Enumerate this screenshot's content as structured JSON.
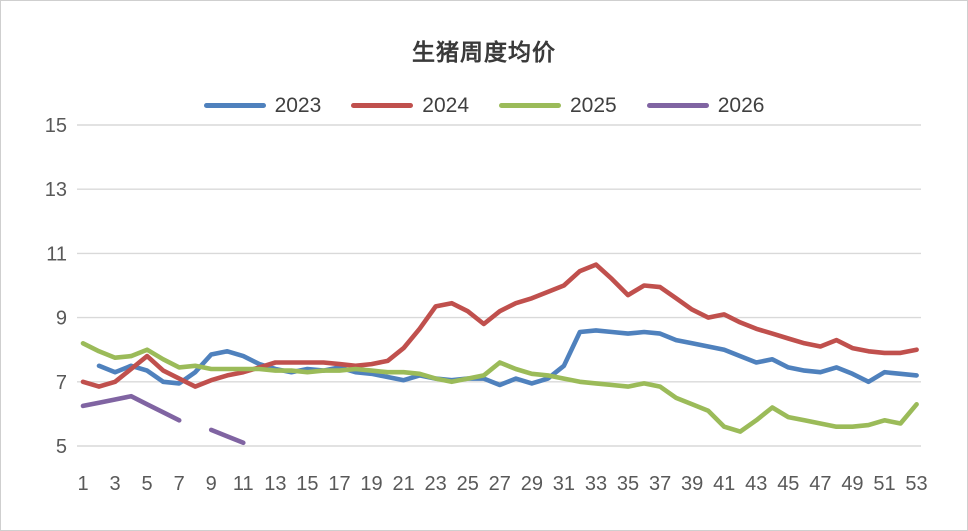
{
  "chart_data": {
    "type": "line",
    "title": "生猪周度均价",
    "xlabel": "",
    "ylabel": "",
    "grid": true,
    "legend_position": "top-center",
    "background_color": "#ffffff",
    "grid_color": "#d9d9d9",
    "axis_label_color": "#595959",
    "title_color": "#3a3a3a",
    "ylim": [
      5,
      15
    ],
    "y_ticks": [
      5,
      7,
      9,
      11,
      13,
      15
    ],
    "x_ticks": [
      1,
      3,
      5,
      7,
      9,
      11,
      13,
      15,
      17,
      19,
      21,
      23,
      25,
      27,
      29,
      31,
      33,
      35,
      37,
      39,
      41,
      43,
      45,
      47,
      49,
      51,
      53
    ],
    "x_unit": "week",
    "x_range": [
      1,
      53
    ],
    "series": [
      {
        "name": "2023",
        "color": "#4f81bd",
        "values": [
          null,
          7.5,
          7.3,
          7.5,
          7.35,
          7.0,
          6.95,
          7.3,
          7.85,
          7.95,
          7.8,
          7.55,
          7.4,
          7.3,
          7.4,
          7.35,
          7.45,
          7.3,
          7.25,
          7.15,
          7.05,
          7.2,
          7.1,
          7.05,
          7.1,
          7.1,
          6.9,
          7.1,
          6.95,
          7.1,
          7.5,
          8.55,
          8.6,
          8.55,
          8.5,
          8.55,
          8.5,
          8.3,
          8.2,
          8.1,
          8.0,
          7.8,
          7.6,
          7.7,
          7.45,
          7.35,
          7.3,
          7.45,
          7.25,
          7.0,
          7.3,
          7.25,
          7.2
        ]
      },
      {
        "name": "2024",
        "color": "#c0504d",
        "values": [
          7.0,
          6.85,
          7.0,
          7.4,
          7.8,
          7.35,
          7.1,
          6.85,
          7.05,
          7.2,
          7.3,
          7.45,
          7.6,
          7.6,
          7.6,
          7.6,
          7.55,
          7.5,
          7.55,
          7.65,
          8.05,
          8.65,
          9.35,
          9.45,
          9.2,
          8.8,
          9.2,
          9.45,
          9.6,
          9.8,
          10.0,
          10.45,
          10.65,
          10.2,
          9.7,
          10.0,
          9.95,
          9.6,
          9.25,
          9.0,
          9.1,
          8.85,
          8.65,
          8.5,
          8.35,
          8.2,
          8.1,
          8.3,
          8.05,
          7.95,
          7.9,
          7.9,
          8.0
        ]
      },
      {
        "name": "2025",
        "color": "#9bbb59",
        "values": [
          8.2,
          7.95,
          7.75,
          7.8,
          8.0,
          7.7,
          7.45,
          7.5,
          7.4,
          7.4,
          7.4,
          7.4,
          7.35,
          7.35,
          7.3,
          7.35,
          7.35,
          7.4,
          7.35,
          7.3,
          7.3,
          7.25,
          7.1,
          7.0,
          7.1,
          7.2,
          7.6,
          7.4,
          7.25,
          7.2,
          7.1,
          7.0,
          6.95,
          6.9,
          6.85,
          6.95,
          6.85,
          6.5,
          6.3,
          6.1,
          5.6,
          5.45,
          5.8,
          6.2,
          5.9,
          5.8,
          5.7,
          5.6,
          5.6,
          5.65,
          5.8,
          5.7,
          6.3
        ]
      },
      {
        "name": "2026",
        "color": "#8064a2",
        "values": [
          6.25,
          6.35,
          6.45,
          6.55,
          6.3,
          6.05,
          5.8,
          null,
          5.5,
          5.3,
          5.1,
          null,
          null,
          null,
          null,
          null,
          null,
          null,
          null,
          null,
          null,
          null,
          null,
          null,
          null,
          null,
          null,
          null,
          null,
          null,
          null,
          null,
          null,
          null,
          null,
          null,
          null,
          null,
          null,
          null,
          null,
          null,
          null,
          null,
          null,
          null,
          null,
          null,
          null,
          null,
          null,
          null,
          null
        ]
      }
    ]
  }
}
